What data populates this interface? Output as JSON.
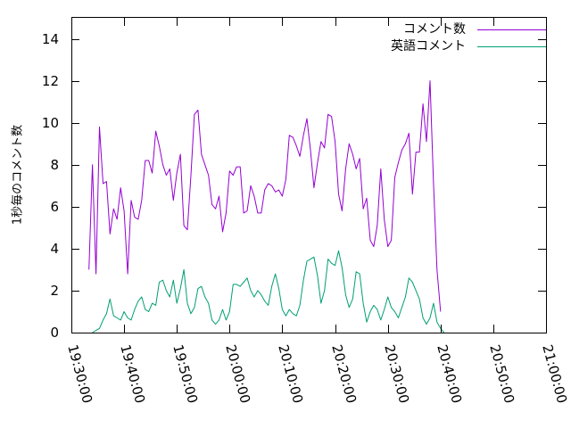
{
  "chart_data": {
    "type": "line",
    "title": "",
    "xlabel": "",
    "ylabel": "1秒毎のコメント数",
    "xlim": [
      "19:30:00",
      "21:00:00"
    ],
    "ylim": [
      0,
      15
    ],
    "grid": false,
    "legend_position": "top-right",
    "x_ticks": [
      "19:30:00",
      "19:40:00",
      "19:50:00",
      "20:00:00",
      "20:10:00",
      "20:20:00",
      "20:30:00",
      "20:40:00",
      "20:50:00",
      "21:00:00"
    ],
    "y_ticks": [
      "0",
      "2",
      "4",
      "6",
      "8",
      "10",
      "12",
      "14"
    ],
    "series": [
      {
        "name": "コメント数",
        "color": "#9400d3",
        "points": [
          [
            "19:33:20",
            3.0
          ],
          [
            "19:34:00",
            8.0
          ],
          [
            "19:34:40",
            2.8
          ],
          [
            "19:35:20",
            9.8
          ],
          [
            "19:36:00",
            7.1
          ],
          [
            "19:36:40",
            7.2
          ],
          [
            "19:37:20",
            4.7
          ],
          [
            "19:38:00",
            5.9
          ],
          [
            "19:38:40",
            5.4
          ],
          [
            "19:39:20",
            6.9
          ],
          [
            "19:40:00",
            5.8
          ],
          [
            "19:40:40",
            2.8
          ],
          [
            "19:41:20",
            6.3
          ],
          [
            "19:42:00",
            5.5
          ],
          [
            "19:42:40",
            5.4
          ],
          [
            "19:43:20",
            6.3
          ],
          [
            "19:44:00",
            8.2
          ],
          [
            "19:44:40",
            8.2
          ],
          [
            "19:45:20",
            7.6
          ],
          [
            "19:46:00",
            9.6
          ],
          [
            "19:46:40",
            8.9
          ],
          [
            "19:47:20",
            8.0
          ],
          [
            "19:48:00",
            7.5
          ],
          [
            "19:48:40",
            7.8
          ],
          [
            "19:49:20",
            6.3
          ],
          [
            "19:50:00",
            7.6
          ],
          [
            "19:50:40",
            8.5
          ],
          [
            "19:51:20",
            5.1
          ],
          [
            "19:52:00",
            4.9
          ],
          [
            "19:52:40",
            7.5
          ],
          [
            "19:53:20",
            10.4
          ],
          [
            "19:54:00",
            10.6
          ],
          [
            "19:54:40",
            8.5
          ],
          [
            "19:55:20",
            8.0
          ],
          [
            "19:56:00",
            7.5
          ],
          [
            "19:56:40",
            6.1
          ],
          [
            "19:57:20",
            5.9
          ],
          [
            "19:58:00",
            6.5
          ],
          [
            "19:58:40",
            4.8
          ],
          [
            "19:59:20",
            5.7
          ],
          [
            "20:00:00",
            7.7
          ],
          [
            "20:00:40",
            7.5
          ],
          [
            "20:01:20",
            7.9
          ],
          [
            "20:02:00",
            7.9
          ],
          [
            "20:02:40",
            5.7
          ],
          [
            "20:03:20",
            5.8
          ],
          [
            "20:04:00",
            7.0
          ],
          [
            "20:04:40",
            6.5
          ],
          [
            "20:05:20",
            5.7
          ],
          [
            "20:06:00",
            5.7
          ],
          [
            "20:06:40",
            6.8
          ],
          [
            "20:07:20",
            7.1
          ],
          [
            "20:08:00",
            7.0
          ],
          [
            "20:08:40",
            6.7
          ],
          [
            "20:09:20",
            6.8
          ],
          [
            "20:10:00",
            6.5
          ],
          [
            "20:10:40",
            7.3
          ],
          [
            "20:11:20",
            9.4
          ],
          [
            "20:12:00",
            9.3
          ],
          [
            "20:12:40",
            8.9
          ],
          [
            "20:13:20",
            8.4
          ],
          [
            "20:14:00",
            9.4
          ],
          [
            "20:14:40",
            10.2
          ],
          [
            "20:15:20",
            8.7
          ],
          [
            "20:16:00",
            6.9
          ],
          [
            "20:16:40",
            8.1
          ],
          [
            "20:17:20",
            9.1
          ],
          [
            "20:18:00",
            8.8
          ],
          [
            "20:18:40",
            10.4
          ],
          [
            "20:19:20",
            10.3
          ],
          [
            "20:20:00",
            9.1
          ],
          [
            "20:20:40",
            6.6
          ],
          [
            "20:21:20",
            5.8
          ],
          [
            "20:22:00",
            7.8
          ],
          [
            "20:22:40",
            9.0
          ],
          [
            "20:23:20",
            8.5
          ],
          [
            "20:24:00",
            7.8
          ],
          [
            "20:24:40",
            8.3
          ],
          [
            "20:25:20",
            5.9
          ],
          [
            "20:26:00",
            6.4
          ],
          [
            "20:26:40",
            4.4
          ],
          [
            "20:27:20",
            4.1
          ],
          [
            "20:28:00",
            5.1
          ],
          [
            "20:28:40",
            7.8
          ],
          [
            "20:29:20",
            5.4
          ],
          [
            "20:30:00",
            4.1
          ],
          [
            "20:30:40",
            4.4
          ],
          [
            "20:31:20",
            7.4
          ],
          [
            "20:32:00",
            8.1
          ],
          [
            "20:32:40",
            8.7
          ],
          [
            "20:33:20",
            9.0
          ],
          [
            "20:34:00",
            9.5
          ],
          [
            "20:34:40",
            6.6
          ],
          [
            "20:35:20",
            8.6
          ],
          [
            "20:36:00",
            8.6
          ],
          [
            "20:36:40",
            10.9
          ],
          [
            "20:37:20",
            9.1
          ],
          [
            "20:38:00",
            12.0
          ],
          [
            "20:38:40",
            7.1
          ],
          [
            "20:39:20",
            3.0
          ],
          [
            "20:40:00",
            1.0
          ]
        ]
      },
      {
        "name": "英語コメント",
        "color": "#009e73",
        "points": [
          [
            "19:34:00",
            0.0
          ],
          [
            "19:34:40",
            0.1
          ],
          [
            "19:35:20",
            0.2
          ],
          [
            "19:36:00",
            0.6
          ],
          [
            "19:36:40",
            0.9
          ],
          [
            "19:37:20",
            1.6
          ],
          [
            "19:38:00",
            0.8
          ],
          [
            "19:38:40",
            0.7
          ],
          [
            "19:39:20",
            0.6
          ],
          [
            "19:40:00",
            1.0
          ],
          [
            "19:40:40",
            0.7
          ],
          [
            "19:41:20",
            0.6
          ],
          [
            "19:42:00",
            1.1
          ],
          [
            "19:42:40",
            1.5
          ],
          [
            "19:43:20",
            1.7
          ],
          [
            "19:44:00",
            1.1
          ],
          [
            "19:44:40",
            1.0
          ],
          [
            "19:45:20",
            1.4
          ],
          [
            "19:46:00",
            1.3
          ],
          [
            "19:46:40",
            2.4
          ],
          [
            "19:47:20",
            2.5
          ],
          [
            "19:48:00",
            2.0
          ],
          [
            "19:48:40",
            1.7
          ],
          [
            "19:49:20",
            2.5
          ],
          [
            "19:50:00",
            1.4
          ],
          [
            "19:50:40",
            2.1
          ],
          [
            "19:51:20",
            3.0
          ],
          [
            "19:52:00",
            1.4
          ],
          [
            "19:52:40",
            0.9
          ],
          [
            "19:53:20",
            1.2
          ],
          [
            "19:54:00",
            2.1
          ],
          [
            "19:54:40",
            2.2
          ],
          [
            "19:55:20",
            1.7
          ],
          [
            "19:56:00",
            1.4
          ],
          [
            "19:56:40",
            0.6
          ],
          [
            "19:57:20",
            0.4
          ],
          [
            "19:58:00",
            0.6
          ],
          [
            "19:58:40",
            1.1
          ],
          [
            "19:59:20",
            0.6
          ],
          [
            "20:00:00",
            1.0
          ],
          [
            "20:00:40",
            2.3
          ],
          [
            "20:01:20",
            2.3
          ],
          [
            "20:02:00",
            2.2
          ],
          [
            "20:02:40",
            2.4
          ],
          [
            "20:03:20",
            2.6
          ],
          [
            "20:04:00",
            2.0
          ],
          [
            "20:04:40",
            1.7
          ],
          [
            "20:05:20",
            2.0
          ],
          [
            "20:06:00",
            1.8
          ],
          [
            "20:06:40",
            1.5
          ],
          [
            "20:07:20",
            1.3
          ],
          [
            "20:08:00",
            2.2
          ],
          [
            "20:08:40",
            2.8
          ],
          [
            "20:09:20",
            2.1
          ],
          [
            "20:10:00",
            1.1
          ],
          [
            "20:10:40",
            0.8
          ],
          [
            "20:11:20",
            1.1
          ],
          [
            "20:12:00",
            0.9
          ],
          [
            "20:12:40",
            0.8
          ],
          [
            "20:13:20",
            1.3
          ],
          [
            "20:14:00",
            2.5
          ],
          [
            "20:14:40",
            3.4
          ],
          [
            "20:15:20",
            3.5
          ],
          [
            "20:16:00",
            3.6
          ],
          [
            "20:16:40",
            2.7
          ],
          [
            "20:17:20",
            1.4
          ],
          [
            "20:18:00",
            2.0
          ],
          [
            "20:18:40",
            3.5
          ],
          [
            "20:19:20",
            3.3
          ],
          [
            "20:20:00",
            3.2
          ],
          [
            "20:20:40",
            3.9
          ],
          [
            "20:21:20",
            3.1
          ],
          [
            "20:22:00",
            1.8
          ],
          [
            "20:22:40",
            1.2
          ],
          [
            "20:23:20",
            1.6
          ],
          [
            "20:24:00",
            2.9
          ],
          [
            "20:24:40",
            2.8
          ],
          [
            "20:25:20",
            1.4
          ],
          [
            "20:26:00",
            0.5
          ],
          [
            "20:26:40",
            1.0
          ],
          [
            "20:27:20",
            1.3
          ],
          [
            "20:28:00",
            1.1
          ],
          [
            "20:28:40",
            0.6
          ],
          [
            "20:29:20",
            1.1
          ],
          [
            "20:30:00",
            1.7
          ],
          [
            "20:30:40",
            1.2
          ],
          [
            "20:31:20",
            1.0
          ],
          [
            "20:32:00",
            0.7
          ],
          [
            "20:32:40",
            1.2
          ],
          [
            "20:33:20",
            1.7
          ],
          [
            "20:34:00",
            2.6
          ],
          [
            "20:34:40",
            2.4
          ],
          [
            "20:35:20",
            2.0
          ],
          [
            "20:36:00",
            1.6
          ],
          [
            "20:36:40",
            0.7
          ],
          [
            "20:37:20",
            0.4
          ],
          [
            "20:38:00",
            0.7
          ],
          [
            "20:38:40",
            1.4
          ],
          [
            "20:39:20",
            0.5
          ],
          [
            "20:40:00",
            0.2
          ],
          [
            "20:40:40",
            0.0
          ]
        ]
      }
    ]
  }
}
